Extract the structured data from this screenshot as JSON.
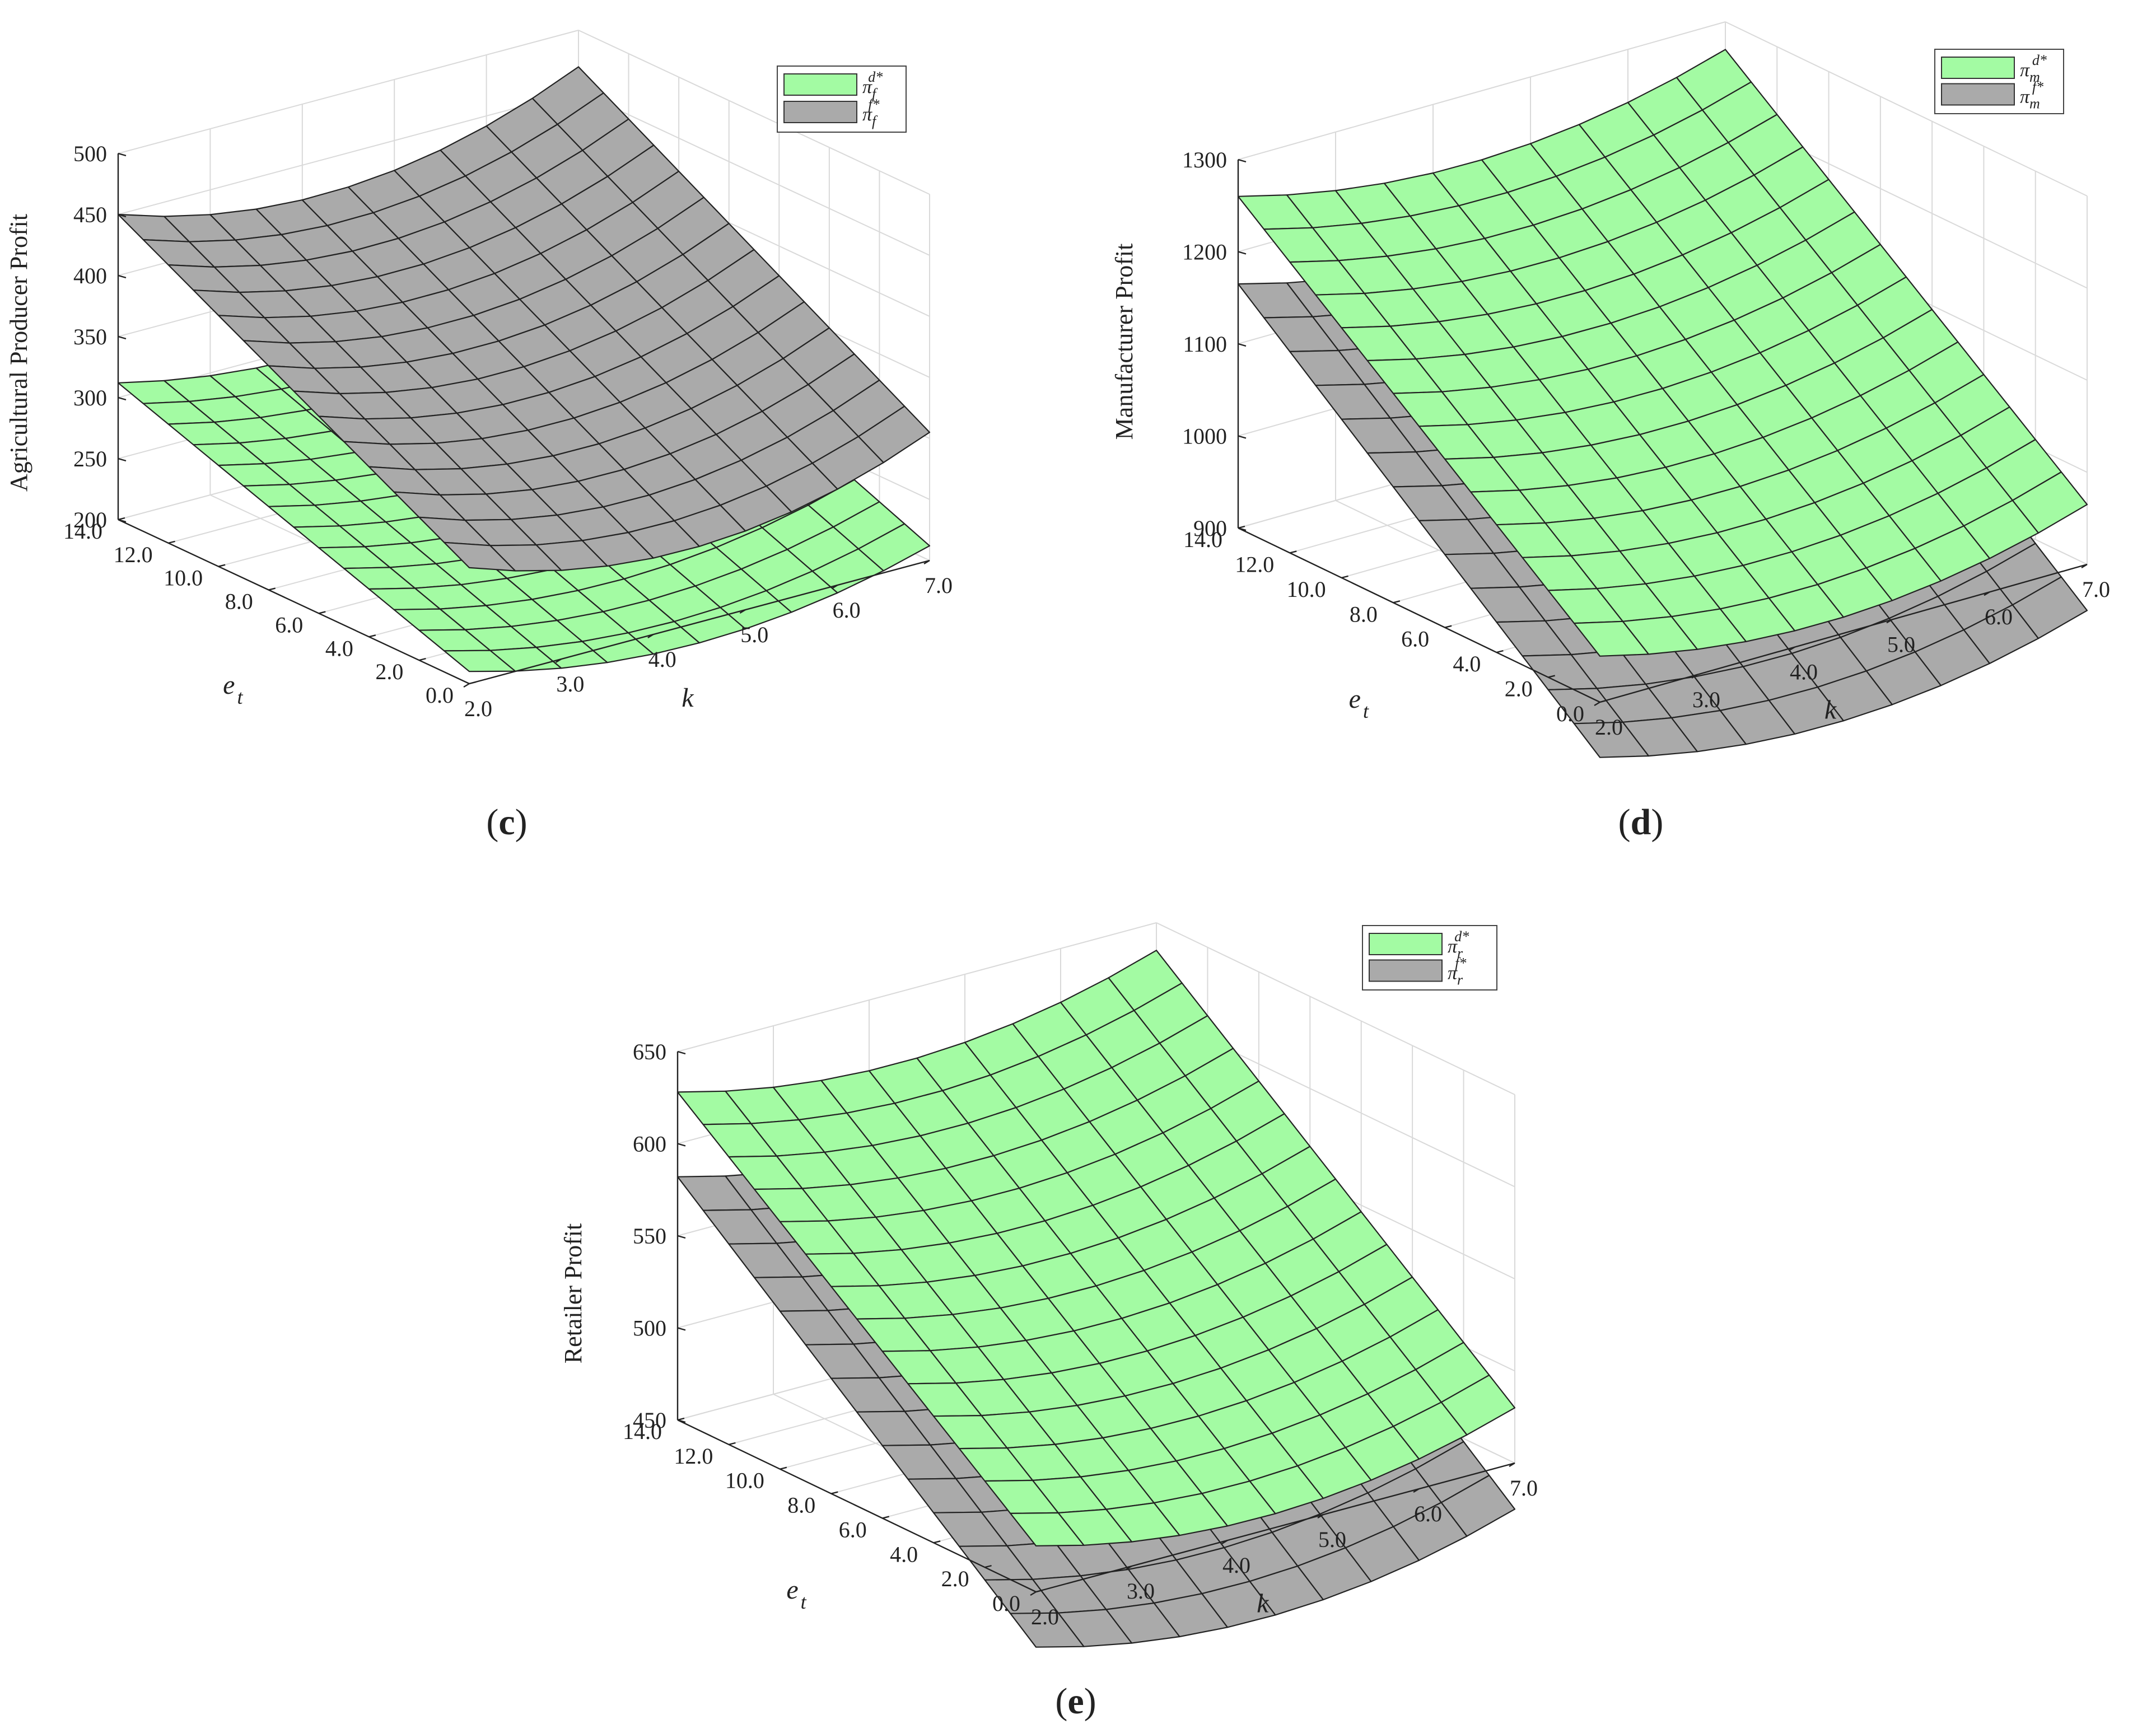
{
  "figure": {
    "colors": {
      "surface_d": "#a3fba3",
      "surface_f": "#aaaaaa",
      "mesh": "#222222",
      "grid": "#d9d9d9",
      "axis": "#222222"
    }
  },
  "chart_data": [
    {
      "id": "c",
      "type": "surface3d",
      "panel_label": {
        "open": "(",
        "letter": "c",
        "close": ")"
      },
      "zlabel": "Agricultural Producer Profit",
      "ylabel": {
        "main": "e",
        "sub": "t"
      },
      "xlabel": "k",
      "zlim": [
        200,
        500
      ],
      "xlim": [
        2,
        7
      ],
      "ylim": [
        0,
        14
      ],
      "x_ticks": [
        "2.0",
        "3.0",
        "4.0",
        "5.0",
        "6.0",
        "7.0"
      ],
      "y_ticks": [
        "0.0",
        "2.0",
        "4.0",
        "6.0",
        "8.0",
        "10.0",
        "12.0",
        "14.0"
      ],
      "z_ticks": [
        "200",
        "250",
        "300",
        "350",
        "400",
        "450",
        "500"
      ],
      "legend_position": "top-right",
      "series": [
        {
          "name": "π_f^{d*}",
          "sym": "π",
          "sub": "f",
          "sup": "d*",
          "color": "surface_d",
          "corners": {
            "k_min_e_min": 210,
            "k_max_e_min": 212,
            "k_min_e_max": 312,
            "k_max_e_max": 330
          },
          "curvature_k": 28
        },
        {
          "name": "π_f^{f*}",
          "sym": "π",
          "sub": "f",
          "sup": "f*",
          "color": "surface_f",
          "corners": {
            "k_min_e_min": 295,
            "k_max_e_min": 305,
            "k_min_e_max": 450,
            "k_max_e_max": 470
          },
          "curvature_k": 38
        }
      ]
    },
    {
      "id": "d",
      "type": "surface3d",
      "panel_label": {
        "open": "(",
        "letter": "d",
        "close": ")"
      },
      "zlabel": "Manufacturer Profit",
      "ylabel": {
        "main": "e",
        "sub": "t"
      },
      "xlabel": "k",
      "zlim": [
        900,
        1300
      ],
      "xlim": [
        2,
        7
      ],
      "ylim": [
        0,
        14
      ],
      "x_ticks": [
        "2.0",
        "3.0",
        "4.0",
        "5.0",
        "6.0",
        "7.0"
      ],
      "y_ticks": [
        "0.0",
        "2.0",
        "4.0",
        "6.0",
        "8.0",
        "10.0",
        "12.0",
        "14.0"
      ],
      "z_ticks": [
        "900",
        "1000",
        "1100",
        "1200",
        "1300"
      ],
      "legend_position": "top-right",
      "series": [
        {
          "name": "π_m^{d*}",
          "sym": "π",
          "sub": "m",
          "sup": "d*",
          "color": "surface_d",
          "corners": {
            "k_min_e_min": 950,
            "k_max_e_min": 965,
            "k_min_e_max": 1260,
            "k_max_e_max": 1270
          },
          "curvature_k": 40
        },
        {
          "name": "π_m^{f*}",
          "sym": "π",
          "sub": "m",
          "sup": "f*",
          "color": "surface_f",
          "corners": {
            "k_min_e_min": 840,
            "k_max_e_min": 850,
            "k_min_e_max": 1165,
            "k_max_e_max": 1170
          },
          "curvature_k": 40
        }
      ]
    },
    {
      "id": "e",
      "type": "surface3d",
      "panel_label": {
        "open": "(",
        "letter": "e",
        "close": ")"
      },
      "zlabel": "Retailer Profit",
      "ylabel": {
        "main": "e",
        "sub": "t"
      },
      "xlabel": "k",
      "zlim": [
        450,
        650
      ],
      "xlim": [
        2,
        7
      ],
      "ylim": [
        0,
        14
      ],
      "x_ticks": [
        "2.0",
        "3.0",
        "4.0",
        "5.0",
        "6.0",
        "7.0"
      ],
      "y_ticks": [
        "0.0",
        "2.0",
        "4.0",
        "6.0",
        "8.0",
        "10.0",
        "12.0",
        "14.0"
      ],
      "z_ticks": [
        "450",
        "500",
        "550",
        "600",
        "650"
      ],
      "legend_position": "top-right",
      "series": [
        {
          "name": "π_r^{d*}",
          "sym": "π",
          "sub": "r",
          "sup": "d*",
          "color": "surface_d",
          "corners": {
            "k_min_e_min": 475,
            "k_max_e_min": 480,
            "k_min_e_max": 628,
            "k_max_e_max": 635
          },
          "curvature_k": 20
        },
        {
          "name": "π_r^{f*}",
          "sym": "π",
          "sub": "r",
          "sup": "f*",
          "color": "surface_f",
          "corners": {
            "k_min_e_min": 420,
            "k_max_e_min": 425,
            "k_min_e_max": 582,
            "k_max_e_max": 588
          },
          "curvature_k": 20
        }
      ]
    }
  ]
}
